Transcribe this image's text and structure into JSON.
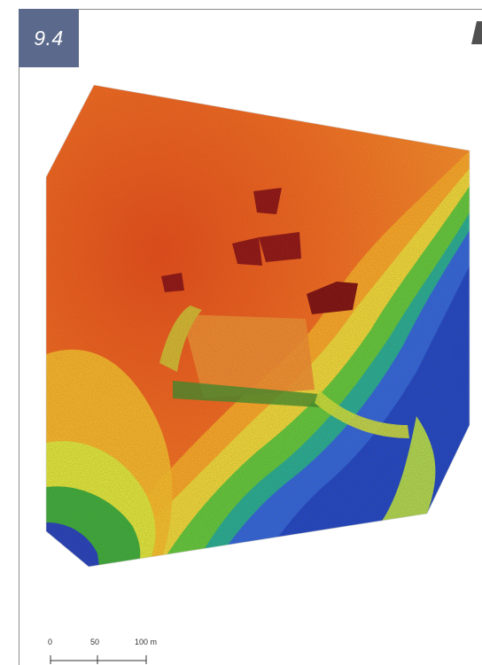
{
  "figure": {
    "number": "9.4"
  },
  "map": {
    "type": "lidar-elevation-model",
    "colors": {
      "high": "#e85a1e",
      "mid_high": "#f0a020",
      "mid": "#e8e040",
      "mid_low": "#38b030",
      "low": "#1a4fd0",
      "lowest": "#1a1aa0",
      "features": "#8a1010"
    }
  },
  "scale_bar": {
    "labels": [
      "0",
      "50",
      "100 m"
    ]
  }
}
